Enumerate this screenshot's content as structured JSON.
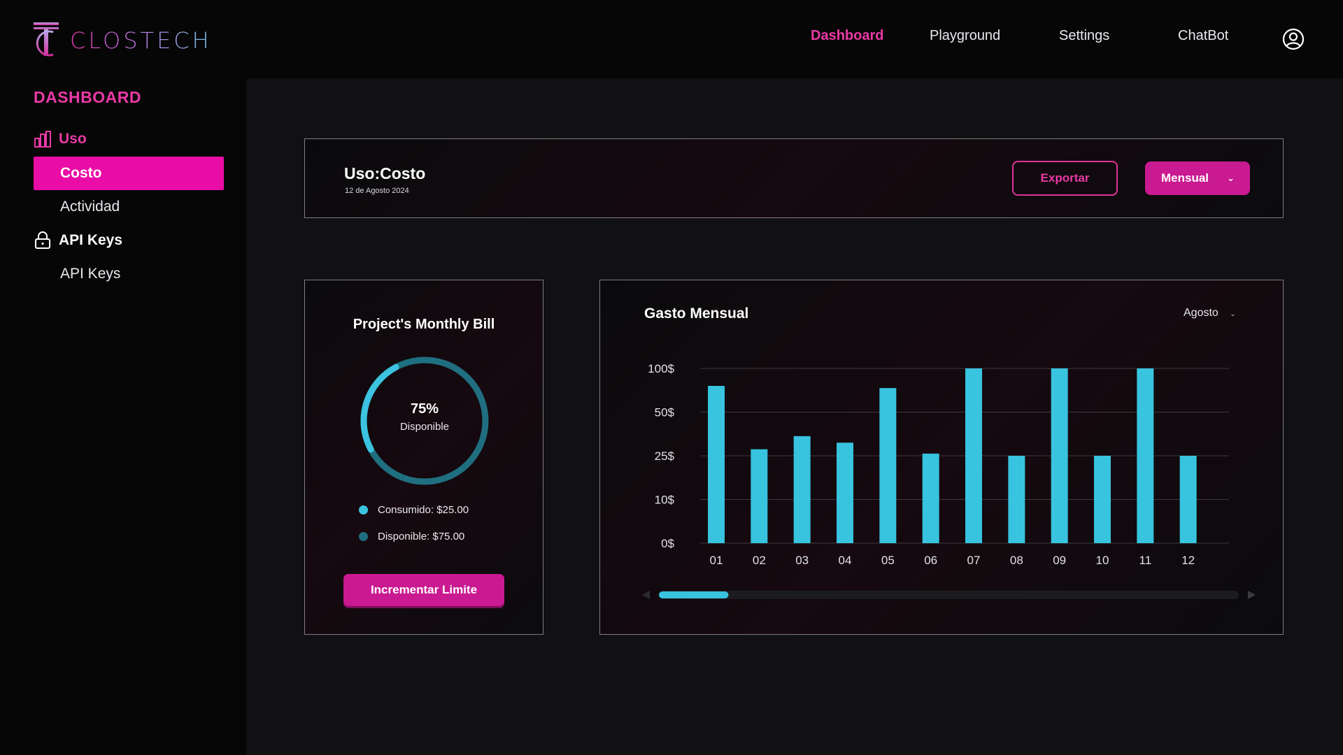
{
  "app": {
    "brand": "CLOSTECH"
  },
  "nav": {
    "items": [
      {
        "label": "Dashboard",
        "active": true
      },
      {
        "label": "Playground",
        "active": false
      },
      {
        "label": "Settings",
        "active": false
      },
      {
        "label": "ChatBot",
        "active": false
      }
    ],
    "user_icon": "user-circle-icon"
  },
  "sidebar": {
    "title": "DASHBOARD",
    "groups": [
      {
        "label": "Uso",
        "icon": "bar-chart-icon",
        "items": [
          {
            "label": "Costo",
            "active": true
          },
          {
            "label": "Actividad",
            "active": false
          }
        ]
      },
      {
        "label": "API Keys",
        "icon": "lock-icon",
        "items": [
          {
            "label": "API Keys",
            "active": false
          }
        ]
      }
    ]
  },
  "header": {
    "title": "Uso:Costo",
    "date": "12 de Agosto 2024",
    "export_label": "Exportar",
    "period_label": "Mensual"
  },
  "bill": {
    "title": "Project's Monthly Bill",
    "percent_label": "75%",
    "percent_caption": "Disponible",
    "available_fraction": 0.75,
    "legend": [
      {
        "label": "Consumido: $25.00",
        "color": "#3cc3e0"
      },
      {
        "label": "Disponible: $75.00",
        "color": "#1f6f80"
      }
    ],
    "button_label": "Incrementar Limite"
  },
  "colors": {
    "accent": "#ea3aa6",
    "accent_fill": "#c91a92",
    "bar": "#38c3df",
    "ring_consumed": "#3cc3e0",
    "ring_available": "#1f6f80"
  },
  "chart": {
    "title": "Gasto Mensual",
    "month_selector": "Agosto"
  },
  "chart_data": {
    "type": "bar",
    "categories": [
      "01",
      "02",
      "03",
      "04",
      "05",
      "06",
      "07",
      "08",
      "09",
      "10",
      "11",
      "12"
    ],
    "y_ticks": [
      "0$",
      "10$",
      "25$",
      "50$",
      "100$"
    ],
    "values": [
      3.6,
      2.15,
      2.45,
      2.3,
      3.55,
      2.05,
      4.0,
      2.0,
      4.0,
      2.0,
      4.0,
      2.0
    ],
    "ylim": [
      0,
      4
    ],
    "scale": "categorical-ticks (equally spaced 0$,10$,25$,50$,100$)",
    "grid": true,
    "legend": "none",
    "scrollbar_position": 0.0,
    "scrollbar_visible_fraction": 0.12
  }
}
